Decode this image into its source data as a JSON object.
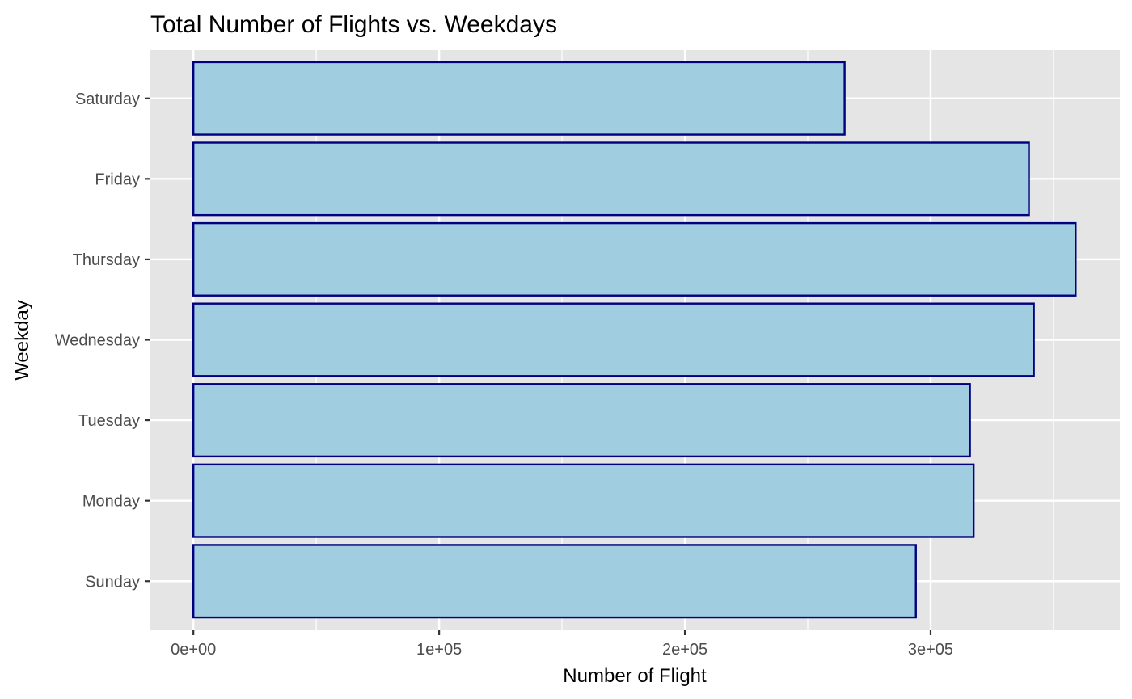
{
  "chart_data": {
    "type": "bar",
    "orientation": "horizontal",
    "title": "Total Number of Flights vs. Weekdays",
    "xlabel": "Number of Flight",
    "ylabel": "Weekday",
    "categories": [
      "Sunday",
      "Monday",
      "Tuesday",
      "Wednesday",
      "Thursday",
      "Friday",
      "Saturday"
    ],
    "values": [
      294000,
      317500,
      316000,
      342000,
      359000,
      340000,
      265000
    ],
    "xlim": [
      -17500,
      377000
    ],
    "x_ticks": [
      0,
      100000,
      200000,
      300000
    ],
    "x_tick_labels": [
      "0e+00",
      "1e+05",
      "2e+05",
      "3e+05"
    ],
    "x_minor_ticks": [
      50000,
      150000,
      250000,
      350000
    ],
    "grid": true,
    "legend": "none",
    "colors": {
      "panel_background": "#e5e5e5",
      "grid": "#ffffff",
      "bar_fill": "#a0cee0",
      "bar_outline": "#000080",
      "tick_mark": "#333333"
    }
  }
}
